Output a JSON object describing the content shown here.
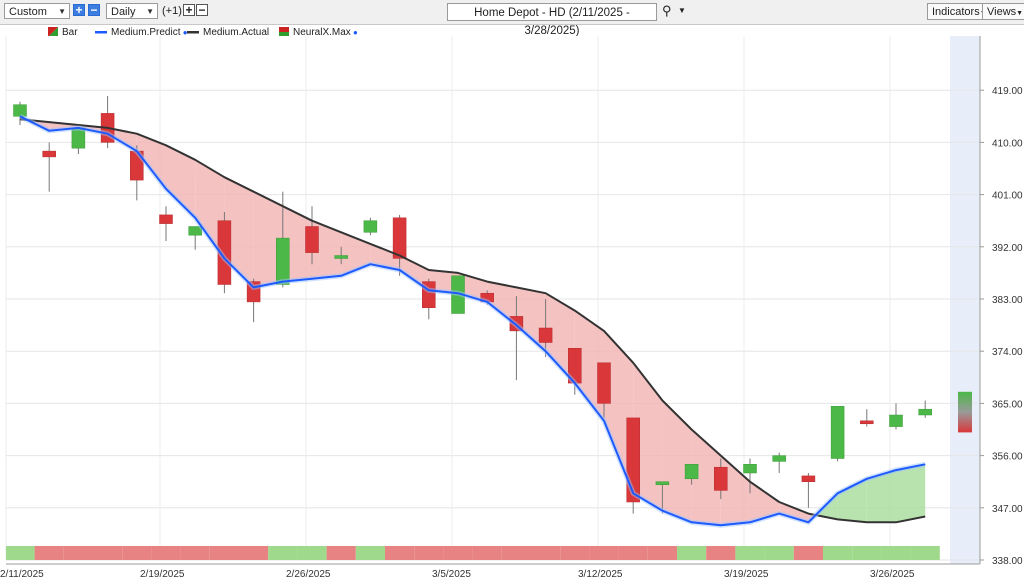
{
  "toolbar": {
    "range_select": "Custom",
    "interval_select": "Daily",
    "offset_label": "(+1)",
    "title": "Home Depot - HD (2/11/2025 - 3/28/2025)",
    "indicators_label": "Indicators",
    "views_label": "Views"
  },
  "legend": [
    {
      "label": "Bar",
      "color": "#2f9e2f"
    },
    {
      "label": "Medium.Predict",
      "color": "#1e5bff"
    },
    {
      "label": "Medium.Actual",
      "color": "#333333"
    },
    {
      "label": "NeuralX.Max",
      "color": "#cc2222"
    }
  ],
  "colors": {
    "up": "#4cb848",
    "down": "#d9373a",
    "predict": "#1e5bff",
    "actual": "#333333",
    "fill_above": "#f2b3b3",
    "fill_below": "#a8dc9a",
    "strip_red": "#e88383",
    "strip_green": "#9ed98c",
    "forecast_band": "#e7eef9"
  },
  "chart_data": {
    "type": "candlestick",
    "title": "Home Depot - HD (2/11/2025 - 3/28/2025)",
    "ylim": [
      338,
      428
    ],
    "y_ticks": [
      "338.00",
      "347.00",
      "356.00",
      "365.00",
      "374.00",
      "383.00",
      "392.00",
      "401.00",
      "410.00",
      "419.00"
    ],
    "x_tick_labels": [
      {
        "label": "2/11/2025",
        "index": 0
      },
      {
        "label": "2/19/2025",
        "index": 5
      },
      {
        "label": "2/26/2025",
        "index": 10
      },
      {
        "label": "3/5/2025",
        "index": 15
      },
      {
        "label": "3/12/2025",
        "index": 20
      },
      {
        "label": "3/19/2025",
        "index": 25
      },
      {
        "label": "3/26/2025",
        "index": 30
      }
    ],
    "candles": [
      {
        "o": 414.5,
        "h": 417.0,
        "l": 413.0,
        "c": 416.5
      },
      {
        "o": 408.5,
        "h": 410.0,
        "l": 401.5,
        "c": 407.5
      },
      {
        "o": 409.0,
        "h": 412.5,
        "l": 408.0,
        "c": 412.5
      },
      {
        "o": 415.0,
        "h": 418.0,
        "l": 409.0,
        "c": 410.0
      },
      {
        "o": 408.5,
        "h": 409.5,
        "l": 400.0,
        "c": 403.5
      },
      {
        "o": 397.5,
        "h": 399.0,
        "l": 393.0,
        "c": 396.0
      },
      {
        "o": 394.0,
        "h": 395.0,
        "l": 391.5,
        "c": 395.5
      },
      {
        "o": 396.5,
        "h": 398.0,
        "l": 384.0,
        "c": 385.5
      },
      {
        "o": 386.0,
        "h": 386.5,
        "l": 379.0,
        "c": 382.5
      },
      {
        "o": 385.5,
        "h": 401.5,
        "l": 385.0,
        "c": 393.5
      },
      {
        "o": 395.5,
        "h": 399.0,
        "l": 389.0,
        "c": 391.0
      },
      {
        "o": 390.0,
        "h": 392.0,
        "l": 389.0,
        "c": 390.5
      },
      {
        "o": 394.5,
        "h": 397.0,
        "l": 394.0,
        "c": 396.5
      },
      {
        "o": 397.0,
        "h": 397.5,
        "l": 387.0,
        "c": 390.0
      },
      {
        "o": 386.0,
        "h": 386.5,
        "l": 379.5,
        "c": 381.5
      },
      {
        "o": 380.5,
        "h": 387.0,
        "l": 380.5,
        "c": 387.0
      },
      {
        "o": 384.0,
        "h": 384.5,
        "l": 382.0,
        "c": 382.5
      },
      {
        "o": 380.0,
        "h": 383.5,
        "l": 369.0,
        "c": 377.5
      },
      {
        "o": 378.0,
        "h": 383.0,
        "l": 373.0,
        "c": 375.5
      },
      {
        "o": 374.5,
        "h": 374.5,
        "l": 366.5,
        "c": 368.5
      },
      {
        "o": 372.0,
        "h": 372.0,
        "l": 362.5,
        "c": 365.0
      },
      {
        "o": 362.5,
        "h": 362.5,
        "l": 346.0,
        "c": 348.0
      },
      {
        "o": 351.0,
        "h": 351.5,
        "l": 346.0,
        "c": 351.5
      },
      {
        "o": 352.0,
        "h": 354.5,
        "l": 351.0,
        "c": 354.5
      },
      {
        "o": 354.0,
        "h": 355.5,
        "l": 348.5,
        "c": 350.0
      },
      {
        "o": 353.0,
        "h": 355.5,
        "l": 349.5,
        "c": 354.5
      },
      {
        "o": 355.0,
        "h": 356.5,
        "l": 353.0,
        "c": 356.0
      },
      {
        "o": 352.5,
        "h": 353.0,
        "l": 347.0,
        "c": 351.5
      },
      {
        "o": 355.5,
        "h": 364.5,
        "l": 355.0,
        "c": 364.5
      },
      {
        "o": 362.0,
        "h": 364.0,
        "l": 361.0,
        "c": 361.5
      },
      {
        "o": 361.0,
        "h": 365.0,
        "l": 360.5,
        "c": 363.0
      },
      {
        "o": 363.0,
        "h": 365.5,
        "l": 362.5,
        "c": 364.0
      }
    ],
    "forecast_bar": {
      "low": 360.0,
      "high": 367.0
    },
    "series": [
      {
        "name": "Medium.Predict",
        "type": "line",
        "x": [
          0,
          1,
          2,
          3,
          4,
          5,
          6,
          7,
          8,
          9,
          10,
          11,
          12,
          13,
          14,
          15,
          16,
          17,
          18,
          19,
          20,
          21,
          22,
          23,
          24,
          25,
          26,
          27,
          28,
          29,
          30,
          31
        ],
        "values": [
          414.5,
          412.0,
          412.5,
          411.5,
          408.5,
          402.0,
          397.0,
          390.0,
          385.0,
          386.0,
          386.5,
          387.0,
          389.0,
          388.0,
          384.5,
          384.0,
          382.5,
          378.5,
          374.0,
          368.5,
          362.0,
          349.5,
          346.5,
          344.5,
          344.0,
          344.5,
          346.0,
          344.5,
          349.5,
          352.0,
          353.5,
          354.5
        ]
      },
      {
        "name": "Medium.Actual",
        "type": "line",
        "x": [
          0,
          1,
          2,
          3,
          4,
          5,
          6,
          7,
          8,
          9,
          10,
          11,
          12,
          13,
          14,
          15,
          16,
          17,
          18,
          19,
          20,
          21,
          22,
          23,
          24,
          25,
          26,
          27,
          28,
          29,
          30,
          31
        ],
        "values": [
          414.0,
          413.5,
          413.0,
          412.5,
          411.5,
          409.5,
          407.0,
          404.0,
          401.5,
          399.0,
          396.5,
          394.5,
          392.5,
          390.5,
          388.0,
          387.5,
          386.0,
          385.0,
          384.0,
          381.0,
          377.5,
          372.0,
          365.5,
          360.5,
          356.0,
          351.5,
          348.0,
          346.0,
          345.0,
          344.5,
          344.5,
          345.5
        ]
      },
      {
        "name": "NeuralX.Max",
        "type": "strip",
        "values": [
          "g",
          "r",
          "r",
          "r",
          "r",
          "r",
          "r",
          "r",
          "r",
          "g",
          "g",
          "r",
          "g",
          "r",
          "r",
          "r",
          "r",
          "r",
          "r",
          "r",
          "r",
          "r",
          "r",
          "g",
          "r",
          "g",
          "g",
          "r",
          "g",
          "g",
          "g",
          "g"
        ]
      }
    ]
  }
}
